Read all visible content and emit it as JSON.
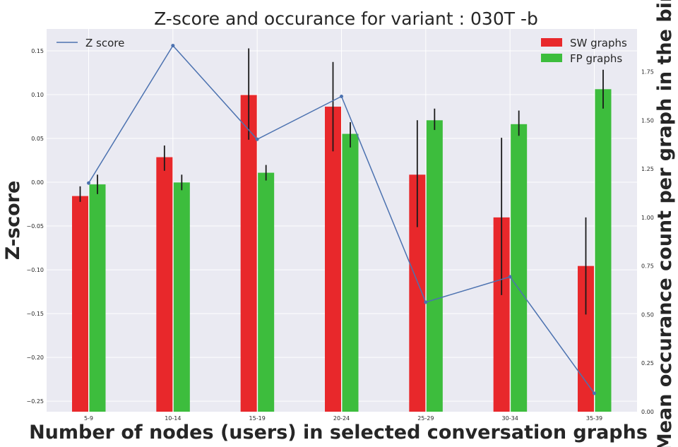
{
  "chart_data": {
    "type": "bar",
    "title": "Z-score and occurance for variant : 030T -b",
    "xlabel": "Number of nodes (users) in selected conversation graphs",
    "ylabel_left": "Z-score",
    "ylabel_right": "Mean occurance count per graph in the bin",
    "categories": [
      "5-9",
      "10-14",
      "15-19",
      "20-24",
      "25-29",
      "30-34",
      "35-39"
    ],
    "left_axis": {
      "ylim": [
        -0.262,
        0.175
      ],
      "ticks": [
        -0.25,
        -0.2,
        -0.15,
        -0.1,
        -0.05,
        0.0,
        0.05,
        0.1,
        0.15
      ],
      "tick_labels": [
        "−0.25",
        "−0.20",
        "−0.15",
        "−0.10",
        "−0.05",
        "0.00",
        "0.05",
        "0.10",
        "0.15"
      ]
    },
    "right_axis": {
      "ylim": [
        0.0,
        1.97
      ],
      "ticks": [
        0.0,
        0.25,
        0.5,
        0.75,
        1.0,
        1.25,
        1.5,
        1.75
      ],
      "tick_labels": [
        "0.00",
        "0.25",
        "0.50",
        "0.75",
        "1.00",
        "1.25",
        "1.50",
        "1.75"
      ]
    },
    "series": [
      {
        "name": "SW graphs",
        "kind": "bar",
        "axis": "right",
        "color": "#e8282b",
        "values": [
          1.11,
          1.31,
          1.63,
          1.57,
          1.22,
          1.0,
          0.75
        ],
        "err_low": [
          1.08,
          1.24,
          1.4,
          1.34,
          0.95,
          0.6,
          0.5
        ],
        "err_high": [
          1.16,
          1.37,
          1.87,
          1.8,
          1.5,
          1.41,
          1.0
        ]
      },
      {
        "name": "FP graphs",
        "kind": "bar",
        "axis": "right",
        "color": "#3dbd3d",
        "values": [
          1.17,
          1.18,
          1.23,
          1.43,
          1.5,
          1.48,
          1.66
        ],
        "err_low": [
          1.12,
          1.14,
          1.19,
          1.36,
          1.45,
          1.42,
          1.56
        ],
        "err_high": [
          1.22,
          1.22,
          1.27,
          1.49,
          1.56,
          1.55,
          1.76
        ]
      },
      {
        "name": "Z score",
        "kind": "line",
        "axis": "left",
        "color": "#4c72b0",
        "values": [
          -0.001,
          0.156,
          0.049,
          0.098,
          -0.137,
          -0.108,
          -0.241
        ]
      }
    ],
    "legend": {
      "line_position": "top-left",
      "bars_position": "top-right"
    },
    "grid": true
  }
}
